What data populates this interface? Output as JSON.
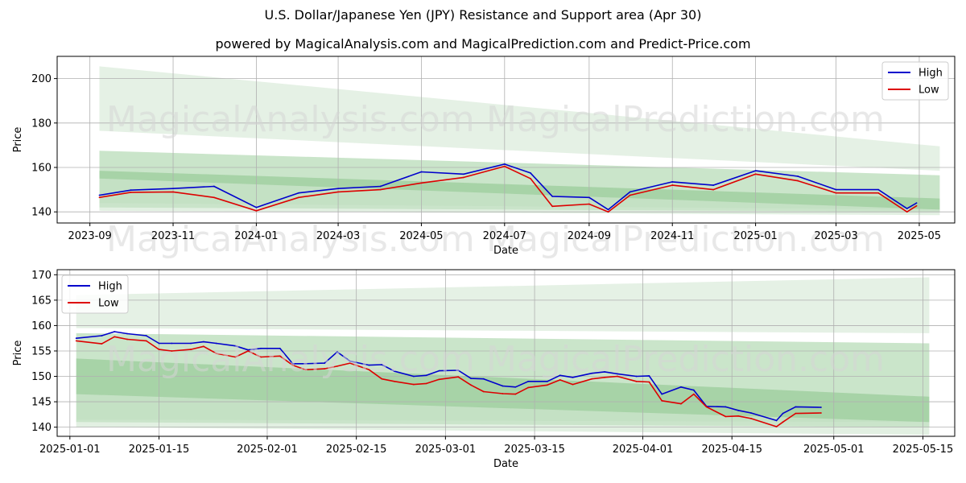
{
  "figure": {
    "title": "U.S. Dollar/Japanese Yen (JPY) Resistance and Support area (Apr 30)",
    "subtitle": "powered by MagicalAnalysis.com and MagicalPrediction.com and Predict-Price.com",
    "watermarks": [
      "MagicalAnalysis.com",
      "MagicalPrediction.com"
    ]
  },
  "colors": {
    "high": "#0000cc",
    "low": "#dd0000",
    "band_light": "#cfe6cf",
    "band_mid": "#9fd09f",
    "band_dark": "#7dbd7d",
    "grid": "#b0b0b0"
  },
  "chart_data": [
    {
      "type": "line",
      "xlabel": "Date",
      "ylabel": "Price",
      "x_ticks": [
        "2023-09",
        "2023-11",
        "2024-01",
        "2024-03",
        "2024-05",
        "2024-07",
        "2024-09",
        "2024-11",
        "2025-01",
        "2025-03",
        "2025-05"
      ],
      "y_ticks": [
        140,
        160,
        180,
        200
      ],
      "xlim": [
        "2023-08-08",
        "2025-05-27"
      ],
      "ylim": [
        135,
        210
      ],
      "grid": true,
      "legend_position": "top-right",
      "series": [
        {
          "name": "High",
          "x": [
            "2023-09-08",
            "2023-10-01",
            "2023-11-01",
            "2023-12-01",
            "2024-01-01",
            "2024-02-01",
            "2024-03-01",
            "2024-04-01",
            "2024-05-01",
            "2024-06-01",
            "2024-07-01",
            "2024-07-20",
            "2024-08-05",
            "2024-09-01",
            "2024-09-15",
            "2024-10-01",
            "2024-11-01",
            "2024-12-01",
            "2025-01-01",
            "2025-02-01",
            "2025-03-01",
            "2025-04-01",
            "2025-04-22",
            "2025-04-29"
          ],
          "values": [
            147.5,
            149.8,
            150.5,
            151.5,
            142.0,
            148.5,
            150.5,
            151.5,
            158.0,
            157.0,
            161.5,
            157.5,
            147.0,
            146.5,
            141.0,
            149.0,
            153.5,
            152.0,
            158.5,
            156.0,
            150.0,
            150.0,
            141.5,
            144.0
          ]
        },
        {
          "name": "Low",
          "x": [
            "2023-09-08",
            "2023-10-01",
            "2023-11-01",
            "2023-12-01",
            "2024-01-01",
            "2024-02-01",
            "2024-03-01",
            "2024-04-01",
            "2024-05-01",
            "2024-06-01",
            "2024-07-01",
            "2024-07-20",
            "2024-08-05",
            "2024-09-01",
            "2024-09-15",
            "2024-10-01",
            "2024-11-01",
            "2024-12-01",
            "2025-01-01",
            "2025-02-01",
            "2025-03-01",
            "2025-04-01",
            "2025-04-22",
            "2025-04-29"
          ],
          "values": [
            146.5,
            148.8,
            149.0,
            146.5,
            140.5,
            146.5,
            149.0,
            150.0,
            153.0,
            155.5,
            160.5,
            155.0,
            142.5,
            143.5,
            140.0,
            147.5,
            152.0,
            150.0,
            157.0,
            154.0,
            148.5,
            148.5,
            140.0,
            142.7
          ]
        }
      ],
      "bands": [
        {
          "name": "resistance-outer",
          "x": [
            "2023-09-08",
            "2025-05-16"
          ],
          "upper": [
            205.5,
            169.5
          ],
          "lower": [
            176.5,
            158.5
          ]
        },
        {
          "name": "resistance-inner",
          "x": [
            "2023-09-08",
            "2025-05-16"
          ],
          "upper": [
            167.5,
            156.5
          ],
          "lower": [
            155.0,
            141.0
          ]
        },
        {
          "name": "support-inner",
          "x": [
            "2023-09-08",
            "2025-05-16"
          ],
          "upper": [
            158.5,
            146.0
          ],
          "lower": [
            142.0,
            140.0
          ]
        },
        {
          "name": "support-outer",
          "x": [
            "2023-09-08",
            "2025-05-16"
          ],
          "upper": [
            144.0,
            141.0
          ],
          "lower": [
            140.5,
            138.5
          ]
        }
      ]
    },
    {
      "type": "line",
      "xlabel": "Date",
      "ylabel": "Price",
      "x_ticks": [
        "2025-01-01",
        "2025-01-15",
        "2025-02-01",
        "2025-02-15",
        "2025-03-01",
        "2025-03-15",
        "2025-04-01",
        "2025-04-15",
        "2025-05-01",
        "2025-05-15"
      ],
      "y_ticks": [
        140,
        145,
        150,
        155,
        160,
        165,
        170
      ],
      "xlim": [
        "2024-12-30",
        "2025-05-20"
      ],
      "ylim": [
        138.2,
        171
      ],
      "grid": true,
      "legend_position": "top-left",
      "series": [
        {
          "name": "High",
          "x": [
            "2025-01-02",
            "2025-01-06",
            "2025-01-08",
            "2025-01-10",
            "2025-01-13",
            "2025-01-15",
            "2025-01-17",
            "2025-01-20",
            "2025-01-22",
            "2025-01-24",
            "2025-01-27",
            "2025-01-29",
            "2025-01-31",
            "2025-02-03",
            "2025-02-05",
            "2025-02-07",
            "2025-02-10",
            "2025-02-12",
            "2025-02-14",
            "2025-02-17",
            "2025-02-19",
            "2025-02-21",
            "2025-02-24",
            "2025-02-26",
            "2025-02-28",
            "2025-03-03",
            "2025-03-05",
            "2025-03-07",
            "2025-03-10",
            "2025-03-12",
            "2025-03-14",
            "2025-03-17",
            "2025-03-19",
            "2025-03-21",
            "2025-03-24",
            "2025-03-26",
            "2025-03-28",
            "2025-03-31",
            "2025-04-02",
            "2025-04-04",
            "2025-04-07",
            "2025-04-09",
            "2025-04-11",
            "2025-04-14",
            "2025-04-16",
            "2025-04-18",
            "2025-04-22",
            "2025-04-23",
            "2025-04-25",
            "2025-04-29"
          ],
          "values": [
            157.5,
            158.0,
            158.8,
            158.4,
            158.0,
            156.5,
            156.5,
            156.5,
            156.8,
            156.5,
            156.0,
            155.2,
            155.5,
            155.5,
            152.5,
            152.5,
            152.6,
            154.8,
            153.0,
            152.2,
            152.3,
            151.0,
            150.0,
            150.2,
            151.1,
            151.2,
            149.6,
            149.5,
            148.1,
            147.9,
            149.0,
            149.0,
            150.2,
            149.8,
            150.6,
            150.9,
            150.5,
            150.0,
            150.1,
            146.5,
            147.9,
            147.3,
            144.1,
            144.0,
            143.3,
            142.8,
            141.3,
            142.7,
            144.0,
            143.9
          ]
        },
        {
          "name": "Low",
          "x": [
            "2025-01-02",
            "2025-01-06",
            "2025-01-08",
            "2025-01-10",
            "2025-01-13",
            "2025-01-15",
            "2025-01-17",
            "2025-01-20",
            "2025-01-22",
            "2025-01-24",
            "2025-01-27",
            "2025-01-29",
            "2025-01-31",
            "2025-02-03",
            "2025-02-05",
            "2025-02-07",
            "2025-02-10",
            "2025-02-12",
            "2025-02-14",
            "2025-02-17",
            "2025-02-19",
            "2025-02-21",
            "2025-02-24",
            "2025-02-26",
            "2025-02-28",
            "2025-03-03",
            "2025-03-05",
            "2025-03-07",
            "2025-03-10",
            "2025-03-12",
            "2025-03-14",
            "2025-03-17",
            "2025-03-19",
            "2025-03-21",
            "2025-03-24",
            "2025-03-26",
            "2025-03-28",
            "2025-03-31",
            "2025-04-02",
            "2025-04-04",
            "2025-04-07",
            "2025-04-09",
            "2025-04-11",
            "2025-04-14",
            "2025-04-16",
            "2025-04-18",
            "2025-04-22",
            "2025-04-23",
            "2025-04-25",
            "2025-04-29"
          ],
          "values": [
            157.0,
            156.4,
            157.8,
            157.3,
            157.0,
            155.3,
            155.0,
            155.3,
            155.9,
            154.5,
            153.8,
            155.0,
            153.8,
            154.0,
            152.2,
            151.3,
            151.5,
            152.0,
            152.6,
            151.3,
            149.5,
            149.0,
            148.4,
            148.6,
            149.4,
            149.9,
            148.3,
            147.0,
            146.6,
            146.5,
            147.8,
            148.3,
            149.3,
            148.4,
            149.5,
            149.8,
            150.0,
            149.0,
            148.9,
            145.2,
            144.6,
            146.5,
            144.0,
            142.1,
            142.2,
            141.7,
            140.1,
            141.0,
            142.7,
            142.8
          ]
        }
      ],
      "bands": [
        {
          "name": "resistance-outer",
          "x": [
            "2025-01-02",
            "2025-05-16"
          ],
          "upper": [
            166.0,
            169.5
          ],
          "lower": [
            159.5,
            158.5
          ]
        },
        {
          "name": "resistance-inner",
          "x": [
            "2025-01-02",
            "2025-05-16"
          ],
          "upper": [
            158.5,
            156.5
          ],
          "lower": [
            146.5,
            141.0
          ]
        },
        {
          "name": "support-inner",
          "x": [
            "2025-01-02",
            "2025-05-16"
          ],
          "upper": [
            153.5,
            146.0
          ],
          "lower": [
            141.0,
            140.0
          ]
        },
        {
          "name": "support-outer",
          "x": [
            "2025-01-02",
            "2025-05-16"
          ],
          "upper": [
            141.5,
            141.0
          ],
          "lower": [
            140.0,
            138.5
          ]
        }
      ]
    }
  ]
}
